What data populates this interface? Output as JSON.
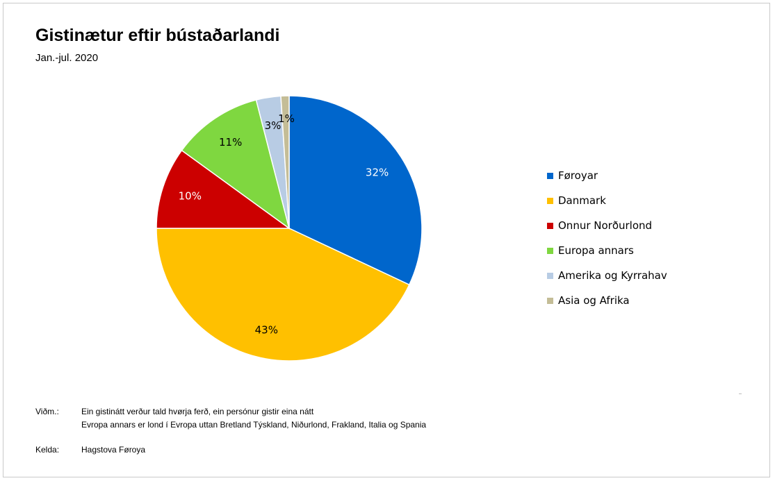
{
  "chart_data": {
    "type": "pie",
    "title": "Gistinætur eftir bústaðarlandi",
    "subtitle": "Jan.-jul. 2020",
    "slices": [
      {
        "label": "Føroyar",
        "value": 32,
        "value_label": "32%",
        "color": "#0066CC",
        "label_color": "#ffffff"
      },
      {
        "label": "Danmark",
        "value": 43,
        "value_label": "43%",
        "color": "#FFC000",
        "label_color": "#000000"
      },
      {
        "label": "Onnur Norðurlond",
        "value": 10,
        "value_label": "10%",
        "color": "#CC0000",
        "label_color": "#ffffff"
      },
      {
        "label": "Europa annars",
        "value": 11,
        "value_label": "11%",
        "color": "#7FD740",
        "label_color": "#000000"
      },
      {
        "label": "Amerika og Kyrrahav",
        "value": 3,
        "value_label": "3%",
        "color": "#B8CCE4",
        "label_color": "#000000"
      },
      {
        "label": "Asia og Afrika",
        "value": 1,
        "value_label": "1%",
        "color": "#C4BD97",
        "label_color": "#000000"
      }
    ],
    "start_angle_deg": 0,
    "direction": "clockwise",
    "legend_position": "right"
  },
  "notes": {
    "key": "Viðm.:",
    "lines": [
      "Ein gistinátt verður tald hvørja ferð, ein persónur gistir eina nátt",
      "Evropa annars er lond í Evropa uttan Bretland Týskland, Niðurlond, Frakland, Italia og Spania"
    ]
  },
  "source": {
    "key": "Kelda:",
    "value": "Hagstova Føroya"
  }
}
